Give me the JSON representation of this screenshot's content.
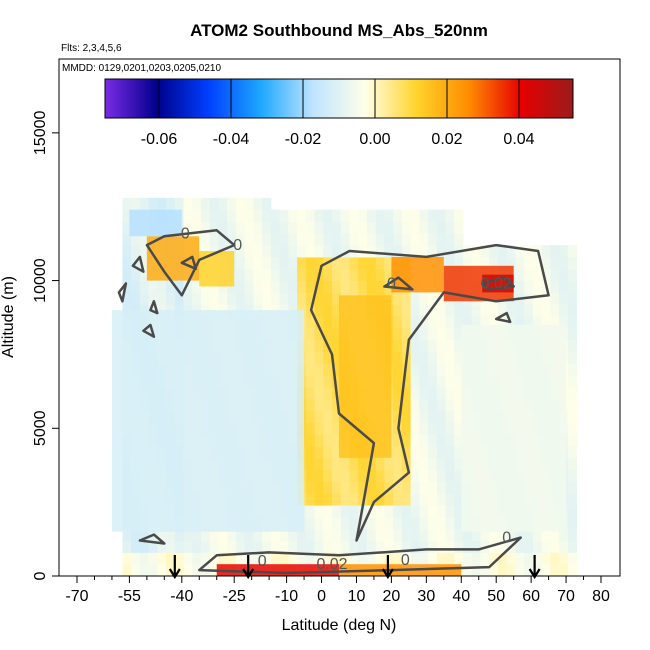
{
  "chart_data": {
    "type": "heatmap",
    "title": "ATOM2 Southbound MS_Abs_520nm",
    "flights_text": "Flts: 2,3,4,5,6",
    "dates_text": "MMDD: 0129,0201,0203,0205,0210",
    "xlabel": "Latitude (deg N)",
    "ylabel": "Altitude (m)",
    "xlim": [
      -70,
      80
    ],
    "ylim": [
      0,
      17500
    ],
    "x_ticks": [
      -70,
      -55,
      -40,
      -25,
      -10,
      0,
      10,
      20,
      30,
      40,
      50,
      60,
      70,
      80
    ],
    "x_minor_ticks": [
      -65,
      -60,
      -50,
      -45,
      -35,
      -30,
      -20,
      -15,
      -5,
      5,
      15,
      25,
      35,
      45,
      55,
      65,
      75
    ],
    "y_ticks": [
      0,
      5000,
      10000,
      15000
    ],
    "colorbar": {
      "range": [
        -0.075,
        0.055
      ],
      "ticks": [
        -0.06,
        -0.04,
        -0.02,
        0.0,
        0.02,
        0.04
      ],
      "tick_labels": [
        "-0.06",
        "-0.04",
        "-0.02",
        "0.00",
        "0.02",
        "0.04"
      ],
      "colors": [
        "#7a2be6",
        "#00008c",
        "#0040ff",
        "#1ea8ff",
        "#bfe4ff",
        "#ffffe8",
        "#ffd32a",
        "#ff8c00",
        "#e60000",
        "#9b1b1b"
      ]
    },
    "contour_labels": [
      {
        "text": "0",
        "lat": -17,
        "alt": 500
      },
      {
        "text": "0.02",
        "lat": 3,
        "alt": 400
      },
      {
        "text": "0",
        "lat": 24,
        "alt": 550
      },
      {
        "text": "0",
        "lat": 53,
        "alt": 1300
      },
      {
        "text": "0",
        "lat": -39,
        "alt": 11600
      },
      {
        "text": "0",
        "lat": -24,
        "alt": 11200
      },
      {
        "text": "0",
        "lat": 20,
        "alt": 9900
      },
      {
        "text": "0.02",
        "lat": 50,
        "alt": 9900
      }
    ],
    "flight_arrows_lat": [
      -42,
      -21,
      19,
      61
    ],
    "field_cells": [
      {
        "lat": [
          -50,
          -35
        ],
        "alt": [
          10000,
          11500
        ],
        "value": 0.02
      },
      {
        "lat": [
          -35,
          -25
        ],
        "alt": [
          9800,
          11000
        ],
        "value": 0.012
      },
      {
        "lat": [
          5,
          20
        ],
        "alt": [
          4000,
          9500
        ],
        "value": 0.015
      },
      {
        "lat": [
          20,
          35
        ],
        "alt": [
          9600,
          10800
        ],
        "value": 0.025
      },
      {
        "lat": [
          35,
          55
        ],
        "alt": [
          9300,
          10500
        ],
        "value": 0.035
      },
      {
        "lat": [
          46,
          55
        ],
        "alt": [
          9600,
          10200
        ],
        "value": 0.045
      },
      {
        "lat": [
          -30,
          5
        ],
        "alt": [
          0,
          400
        ],
        "value": 0.04
      },
      {
        "lat": [
          5,
          40
        ],
        "alt": [
          0,
          400
        ],
        "value": 0.025
      },
      {
        "lat": [
          -60,
          -5
        ],
        "alt": [
          1500,
          9000
        ],
        "value": -0.012
      },
      {
        "lat": [
          40,
          70
        ],
        "alt": [
          1500,
          8500
        ],
        "value": -0.006
      },
      {
        "lat": [
          -55,
          -40
        ],
        "alt": [
          11500,
          12400
        ],
        "value": -0.018
      }
    ]
  }
}
